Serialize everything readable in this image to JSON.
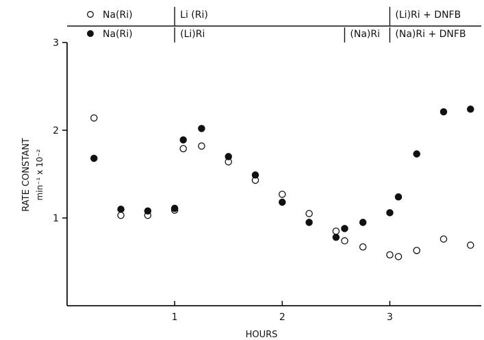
{
  "chart_data": {
    "type": "scatter",
    "xlabel": "HOURS",
    "ylabel": "RATE CONSTANT",
    "ylabel_units": "min⁻¹ x 10⁻²",
    "xlim": [
      0,
      3.85
    ],
    "ylim": [
      0,
      3
    ],
    "x_ticks": [
      1,
      2,
      3
    ],
    "y_ticks": [
      1,
      2,
      3
    ],
    "grid": false,
    "condition_rows": [
      {
        "series": "open",
        "segments": [
          {
            "label": "Na(Ri)",
            "from": 0,
            "to": 1
          },
          {
            "label": "Li (Ri)",
            "from": 1,
            "to": 3
          },
          {
            "label": "(Li)Ri + DNFB",
            "from": 3,
            "to": 3.85
          }
        ]
      },
      {
        "series": "filled",
        "segments": [
          {
            "label": "Na(Ri)",
            "from": 0,
            "to": 1
          },
          {
            "label": "(Li)Ri",
            "from": 1,
            "to": 2.58
          },
          {
            "label": "(Na)Ri",
            "from": 2.58,
            "to": 3
          },
          {
            "label": "(Na)Ri + DNFB",
            "from": 3,
            "to": 3.85
          }
        ]
      }
    ],
    "series": [
      {
        "marker": "open-circle",
        "x": [
          0.25,
          0.5,
          0.75,
          1.0,
          1.08,
          1.25,
          1.5,
          1.75,
          2.0,
          2.25,
          2.5,
          2.58,
          2.75,
          3.0,
          3.08,
          3.25,
          3.5,
          3.75
        ],
        "y": [
          2.14,
          1.03,
          1.03,
          1.09,
          1.79,
          1.82,
          1.64,
          1.43,
          1.27,
          1.05,
          0.85,
          0.74,
          0.67,
          0.58,
          0.56,
          0.63,
          0.76,
          0.69
        ]
      },
      {
        "marker": "filled-circle",
        "x": [
          0.25,
          0.5,
          0.75,
          1.0,
          1.08,
          1.25,
          1.5,
          1.75,
          2.0,
          2.25,
          2.5,
          2.58,
          2.75,
          3.0,
          3.08,
          3.25,
          3.5,
          3.75
        ],
        "y": [
          1.68,
          1.1,
          1.08,
          1.11,
          1.89,
          2.02,
          1.7,
          1.49,
          1.18,
          0.95,
          0.78,
          0.88,
          0.95,
          1.06,
          1.24,
          1.73,
          2.21,
          2.24
        ]
      }
    ]
  }
}
